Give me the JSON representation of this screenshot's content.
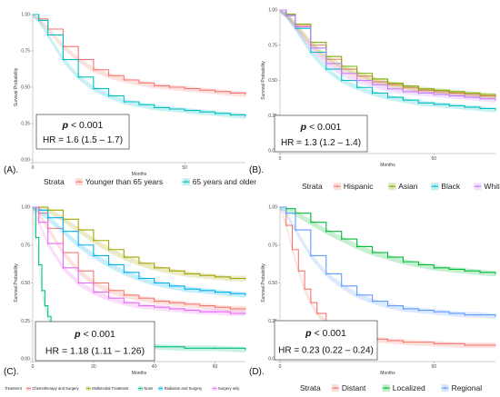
{
  "chart_data": [
    {
      "type": "line",
      "panel_label": "(A).",
      "xlabel": "Months",
      "ylabel": "Survival Probability",
      "xlim": [
        0,
        70
      ],
      "ylim": [
        0,
        1
      ],
      "x_ticks": [
        0,
        50
      ],
      "y_ticks": [
        0,
        0.25,
        0.5,
        0.75,
        1.0
      ],
      "y_tick_labels": [
        "0.00",
        "0.25",
        "0.50",
        "0.75",
        "1.00"
      ],
      "legend_title": "Strata",
      "legend_position": "bottom",
      "annotation": {
        "p_prefix": "p",
        "p_rest": " < 0.001",
        "hr": "HR = 1.6 (1.5 – 1.7)"
      },
      "series": [
        {
          "name": "Younger than 65 years",
          "color": "#f8766d",
          "x": [
            0,
            2,
            5,
            10,
            15,
            20,
            25,
            30,
            35,
            40,
            45,
            50,
            55,
            60,
            65,
            70
          ],
          "y": [
            1.0,
            0.97,
            0.9,
            0.78,
            0.69,
            0.62,
            0.58,
            0.55,
            0.53,
            0.51,
            0.5,
            0.49,
            0.48,
            0.47,
            0.46,
            0.45
          ]
        },
        {
          "name": "65 years and older",
          "color": "#00bfc4",
          "x": [
            0,
            2,
            5,
            10,
            15,
            20,
            25,
            30,
            35,
            40,
            45,
            50,
            55,
            60,
            65,
            70
          ],
          "y": [
            1.0,
            0.96,
            0.86,
            0.69,
            0.57,
            0.49,
            0.44,
            0.4,
            0.38,
            0.36,
            0.35,
            0.34,
            0.33,
            0.32,
            0.31,
            0.3
          ]
        }
      ]
    },
    {
      "type": "line",
      "panel_label": "(B).",
      "xlabel": "Months",
      "ylabel": "Survival Probability",
      "xlim": [
        0,
        70
      ],
      "ylim": [
        0,
        1
      ],
      "x_ticks": [
        0,
        50
      ],
      "y_ticks": [
        0,
        0.25,
        0.5,
        0.75,
        1.0
      ],
      "y_tick_labels": [
        "0.00",
        "0.25",
        "0.50",
        "0.75",
        "1.00"
      ],
      "legend_title": "Strata",
      "legend_position": "bottom",
      "annotation": {
        "p_prefix": "p",
        "p_rest": " < 0.001",
        "hr": "HR = 1.3 (1.2 – 1.4)"
      },
      "series": [
        {
          "name": "Hispanic",
          "color": "#f8766d",
          "x": [
            0,
            2,
            5,
            10,
            15,
            20,
            25,
            30,
            35,
            40,
            45,
            50,
            55,
            60,
            65,
            70
          ],
          "y": [
            1.0,
            0.97,
            0.89,
            0.75,
            0.65,
            0.58,
            0.53,
            0.49,
            0.47,
            0.45,
            0.43,
            0.42,
            0.41,
            0.4,
            0.39,
            0.38
          ]
        },
        {
          "name": "Asian",
          "color": "#7cae00",
          "x": [
            0,
            2,
            5,
            10,
            15,
            20,
            25,
            30,
            35,
            40,
            45,
            50,
            55,
            60,
            65,
            70
          ],
          "y": [
            1.0,
            0.97,
            0.9,
            0.77,
            0.67,
            0.6,
            0.55,
            0.51,
            0.48,
            0.46,
            0.44,
            0.43,
            0.42,
            0.41,
            0.4,
            0.39
          ]
        },
        {
          "name": "Black",
          "color": "#00bfc4",
          "x": [
            0,
            2,
            5,
            10,
            15,
            20,
            25,
            30,
            35,
            40,
            45,
            50,
            55,
            60,
            65,
            70
          ],
          "y": [
            1.0,
            0.96,
            0.87,
            0.7,
            0.58,
            0.5,
            0.45,
            0.41,
            0.38,
            0.36,
            0.34,
            0.33,
            0.32,
            0.31,
            0.3,
            0.29
          ]
        },
        {
          "name": "White",
          "color": "#c77cff",
          "x": [
            0,
            2,
            5,
            10,
            15,
            20,
            25,
            30,
            35,
            40,
            45,
            50,
            55,
            60,
            65,
            70
          ],
          "y": [
            1.0,
            0.96,
            0.88,
            0.73,
            0.62,
            0.55,
            0.5,
            0.47,
            0.44,
            0.42,
            0.41,
            0.4,
            0.39,
            0.38,
            0.37,
            0.36
          ]
        }
      ]
    },
    {
      "type": "line",
      "panel_label": "(C).",
      "xlabel": "Months",
      "ylabel": "Survival Probability",
      "xlim": [
        0,
        70
      ],
      "ylim": [
        0,
        1
      ],
      "x_ticks": [
        0,
        20,
        40,
        60
      ],
      "y_ticks": [
        0,
        0.25,
        0.5,
        0.75,
        1.0
      ],
      "y_tick_labels": [
        "0.00",
        "0.25",
        "0.50",
        "0.75",
        "1.00"
      ],
      "legend_title": "Treatment",
      "legend_position": "bottom",
      "annotation": {
        "p_prefix": "p",
        "p_rest": " < 0.001",
        "hr": "HR = 1.18 (1.11 – 1.26)"
      },
      "series": [
        {
          "name": "Chemotherapy and Surgery",
          "color": "#f8766d",
          "x": [
            0,
            2,
            5,
            10,
            15,
            20,
            25,
            30,
            35,
            40,
            45,
            50,
            55,
            60,
            65,
            70
          ],
          "y": [
            1.0,
            0.96,
            0.86,
            0.7,
            0.58,
            0.5,
            0.45,
            0.42,
            0.4,
            0.38,
            0.37,
            0.36,
            0.35,
            0.34,
            0.33,
            0.33
          ]
        },
        {
          "name": "Multimodal Treatment",
          "color": "#a3a500",
          "x": [
            0,
            2,
            5,
            10,
            15,
            20,
            25,
            30,
            35,
            40,
            45,
            50,
            55,
            60,
            65,
            70
          ],
          "y": [
            1.0,
            1.0,
            0.98,
            0.92,
            0.85,
            0.78,
            0.72,
            0.67,
            0.63,
            0.6,
            0.58,
            0.56,
            0.55,
            0.54,
            0.53,
            0.53
          ]
        },
        {
          "name": "None",
          "color": "#00bf7d",
          "x": [
            0,
            1,
            2,
            3,
            4,
            5,
            6,
            8,
            10,
            15,
            20,
            30,
            40,
            50,
            60,
            70
          ],
          "y": [
            1.0,
            0.8,
            0.62,
            0.45,
            0.35,
            0.28,
            0.22,
            0.17,
            0.14,
            0.11,
            0.1,
            0.09,
            0.08,
            0.07,
            0.07,
            0.06
          ]
        },
        {
          "name": "Radiation and Surgery",
          "color": "#00b0f6",
          "x": [
            0,
            2,
            5,
            10,
            15,
            20,
            25,
            30,
            35,
            40,
            45,
            50,
            55,
            60,
            65,
            70
          ],
          "y": [
            1.0,
            0.98,
            0.93,
            0.84,
            0.75,
            0.68,
            0.62,
            0.57,
            0.53,
            0.5,
            0.48,
            0.46,
            0.45,
            0.44,
            0.43,
            0.42
          ]
        },
        {
          "name": "Surgery only",
          "color": "#e76bf3",
          "x": [
            0,
            2,
            5,
            10,
            15,
            20,
            25,
            30,
            35,
            40,
            45,
            50,
            55,
            60,
            65,
            70
          ],
          "y": [
            1.0,
            0.9,
            0.76,
            0.6,
            0.5,
            0.44,
            0.4,
            0.37,
            0.35,
            0.34,
            0.33,
            0.32,
            0.31,
            0.31,
            0.3,
            0.3
          ]
        }
      ]
    },
    {
      "type": "line",
      "panel_label": "(D).",
      "xlabel": "Months",
      "ylabel": "Survival Probability",
      "xlim": [
        0,
        70
      ],
      "ylim": [
        0,
        1
      ],
      "x_ticks": [
        0,
        50
      ],
      "y_ticks": [
        0,
        0.25,
        0.5,
        0.75,
        1.0
      ],
      "y_tick_labels": [
        "0.00",
        "0.25",
        "0.50",
        "0.75",
        "1.00"
      ],
      "legend_title": "Strata",
      "legend_position": "bottom",
      "annotation": {
        "p_prefix": "p",
        "p_rest": " < 0.001",
        "hr": "HR = 0.23 (0.22 – 0.24)"
      },
      "series": [
        {
          "name": "Distant",
          "color": "#f8766d",
          "x": [
            0,
            2,
            4,
            6,
            8,
            10,
            12,
            15,
            20,
            25,
            30,
            35,
            40,
            50,
            60,
            70
          ],
          "y": [
            1.0,
            0.88,
            0.72,
            0.58,
            0.46,
            0.37,
            0.3,
            0.24,
            0.18,
            0.15,
            0.13,
            0.12,
            0.11,
            0.1,
            0.09,
            0.09
          ]
        },
        {
          "name": "Localized",
          "color": "#00ba38",
          "x": [
            0,
            2,
            5,
            10,
            15,
            20,
            25,
            30,
            35,
            40,
            45,
            50,
            55,
            60,
            65,
            70
          ],
          "y": [
            1.0,
            0.99,
            0.96,
            0.9,
            0.84,
            0.79,
            0.74,
            0.7,
            0.67,
            0.64,
            0.62,
            0.6,
            0.59,
            0.58,
            0.57,
            0.56
          ]
        },
        {
          "name": "Regional",
          "color": "#619cff",
          "x": [
            0,
            2,
            5,
            10,
            15,
            20,
            25,
            30,
            35,
            40,
            45,
            50,
            55,
            60,
            65,
            70
          ],
          "y": [
            1.0,
            0.96,
            0.85,
            0.68,
            0.56,
            0.48,
            0.42,
            0.38,
            0.35,
            0.33,
            0.32,
            0.31,
            0.3,
            0.29,
            0.29,
            0.28
          ]
        }
      ]
    }
  ]
}
